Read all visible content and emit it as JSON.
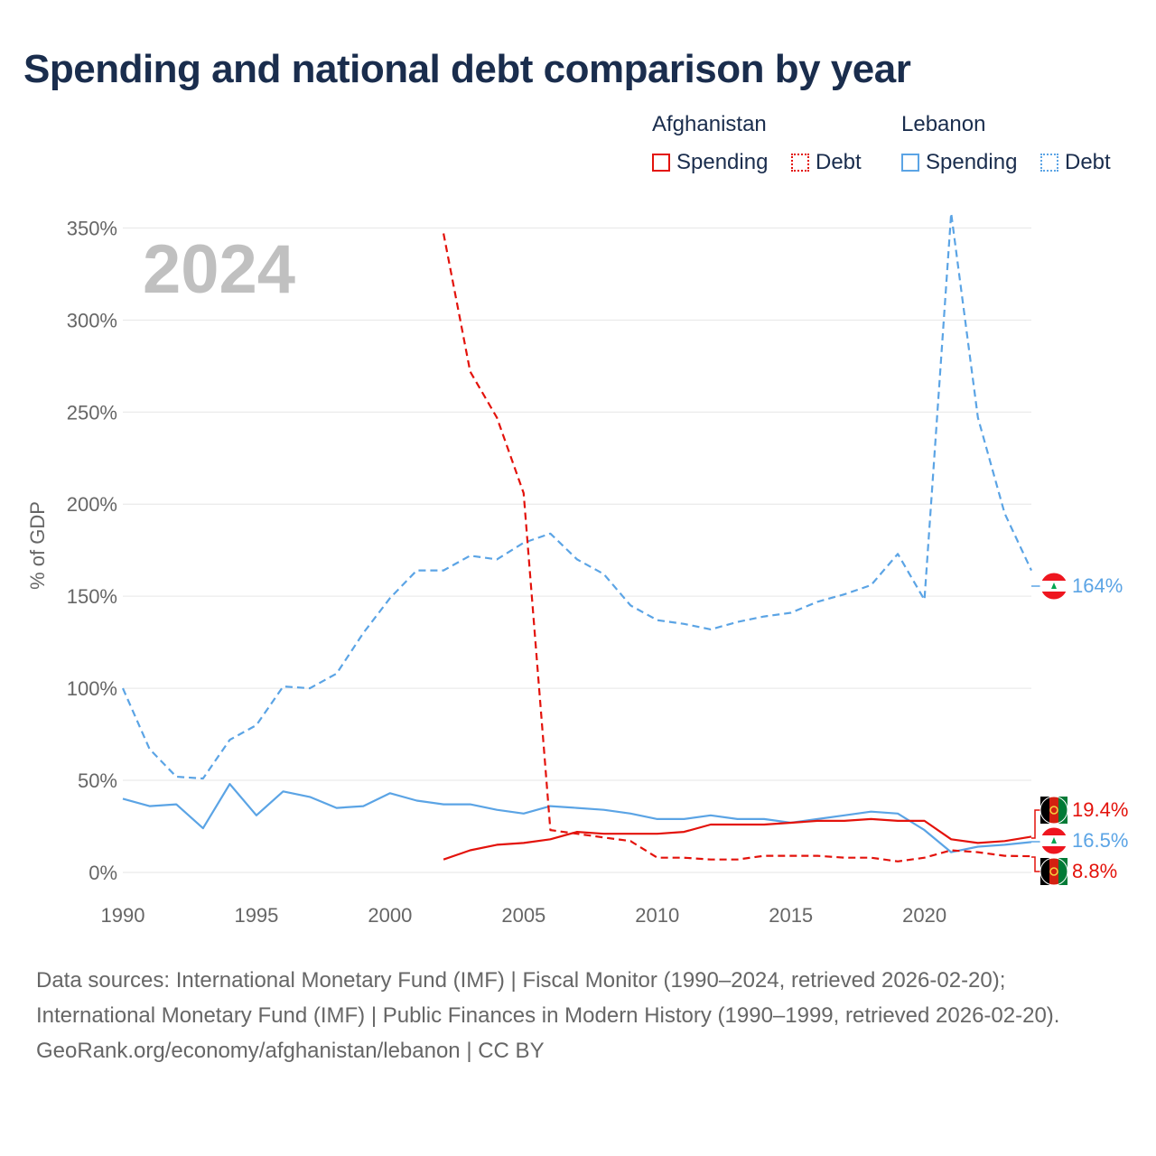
{
  "title": "Spending and national debt comparison by year",
  "legend": {
    "groups": [
      {
        "name": "Afghanistan",
        "items": [
          {
            "label": "Spending",
            "style": "solid",
            "color": "#e3120b"
          },
          {
            "label": "Debt",
            "style": "dotted",
            "color": "#e3120b"
          }
        ]
      },
      {
        "name": "Lebanon",
        "items": [
          {
            "label": "Spending",
            "style": "solid",
            "color": "#5ba4e5"
          },
          {
            "label": "Debt",
            "style": "dotted",
            "color": "#5ba4e5"
          }
        ]
      }
    ]
  },
  "year_label": "2024",
  "end_labels": {
    "lebanon_debt": "164%",
    "afghanistan_spending": "19.4%",
    "lebanon_spending": "16.5%",
    "afghanistan_debt": "8.8%"
  },
  "footer": {
    "sources": "Data sources: International Monetary Fund (IMF) | Fiscal Monitor (1990–2024, retrieved 2026-02-20); International Monetary Fund (IMF) | Public Finances in Modern History (1990–1999, retrieved 2026-02-20).",
    "credit": "GeoRank.org/economy/afghanistan/lebanon | CC BY"
  },
  "colors": {
    "afghanistan": "#e3120b",
    "lebanon": "#5ba4e5",
    "title": "#1a2d4d",
    "axis_text": "#666666",
    "grid": "#e6e6e6",
    "year_watermark": "#c0c0c0"
  },
  "chart_data": {
    "type": "line",
    "title": "Spending and national debt comparison by year",
    "xlabel": "",
    "ylabel": "% of GDP",
    "xlim": [
      1990,
      2024
    ],
    "ylim": [
      0,
      360
    ],
    "x_ticks": [
      1990,
      1995,
      2000,
      2005,
      2010,
      2015,
      2020
    ],
    "y_ticks": [
      0,
      50,
      100,
      150,
      200,
      250,
      300,
      350
    ],
    "y_tick_labels": [
      "0%",
      "50%",
      "100%",
      "150%",
      "200%",
      "250%",
      "300%",
      "350%"
    ],
    "grid": true,
    "series": [
      {
        "name": "Lebanon Debt",
        "country": "Lebanon",
        "measure": "Debt",
        "style": "dashed",
        "color": "#5ba4e5",
        "x": [
          1990,
          1991,
          1992,
          1993,
          1994,
          1995,
          1996,
          1997,
          1998,
          1999,
          2000,
          2001,
          2002,
          2003,
          2004,
          2005,
          2006,
          2007,
          2008,
          2009,
          2010,
          2011,
          2012,
          2013,
          2014,
          2015,
          2016,
          2017,
          2018,
          2019,
          2020,
          2021,
          2022,
          2023,
          2024
        ],
        "values": [
          100,
          67,
          52,
          51,
          72,
          80,
          101,
          100,
          108,
          130,
          149,
          164,
          164,
          172,
          170,
          179,
          184,
          170,
          162,
          145,
          137,
          135,
          132,
          136,
          139,
          141,
          147,
          151,
          156,
          173,
          148,
          358,
          247,
          195,
          164
        ]
      },
      {
        "name": "Lebanon Spending",
        "country": "Lebanon",
        "measure": "Spending",
        "style": "solid",
        "color": "#5ba4e5",
        "x": [
          1990,
          1991,
          1992,
          1993,
          1994,
          1995,
          1996,
          1997,
          1998,
          1999,
          2000,
          2001,
          2002,
          2003,
          2004,
          2005,
          2006,
          2007,
          2008,
          2009,
          2010,
          2011,
          2012,
          2013,
          2014,
          2015,
          2016,
          2017,
          2018,
          2019,
          2020,
          2021,
          2022,
          2023,
          2024
        ],
        "values": [
          40,
          36,
          37,
          24,
          48,
          31,
          44,
          41,
          35,
          36,
          43,
          39,
          37,
          37,
          34,
          32,
          36,
          35,
          34,
          32,
          29,
          29,
          31,
          29,
          29,
          27,
          29,
          31,
          33,
          32,
          23,
          11,
          14,
          15,
          16.5
        ]
      },
      {
        "name": "Afghanistan Debt",
        "country": "Afghanistan",
        "measure": "Debt",
        "style": "dashed",
        "color": "#e3120b",
        "x": [
          2002,
          2003,
          2004,
          2005,
          2006,
          2007,
          2008,
          2009,
          2010,
          2011,
          2012,
          2013,
          2014,
          2015,
          2016,
          2017,
          2018,
          2019,
          2020,
          2021,
          2022,
          2023,
          2024
        ],
        "values": [
          347,
          272,
          247,
          206,
          23,
          21,
          19,
          17,
          8,
          8,
          7,
          7,
          9,
          9,
          9,
          8,
          8,
          6,
          8,
          12,
          11,
          9,
          8.8
        ]
      },
      {
        "name": "Afghanistan Spending",
        "country": "Afghanistan",
        "measure": "Spending",
        "style": "solid",
        "color": "#e3120b",
        "x": [
          2002,
          2003,
          2004,
          2005,
          2006,
          2007,
          2008,
          2009,
          2010,
          2011,
          2012,
          2013,
          2014,
          2015,
          2016,
          2017,
          2018,
          2019,
          2020,
          2021,
          2022,
          2023,
          2024
        ],
        "values": [
          7,
          12,
          15,
          16,
          18,
          22,
          21,
          21,
          21,
          22,
          26,
          26,
          26,
          27,
          28,
          28,
          29,
          28,
          28,
          18,
          16,
          17,
          19.4
        ]
      }
    ]
  }
}
